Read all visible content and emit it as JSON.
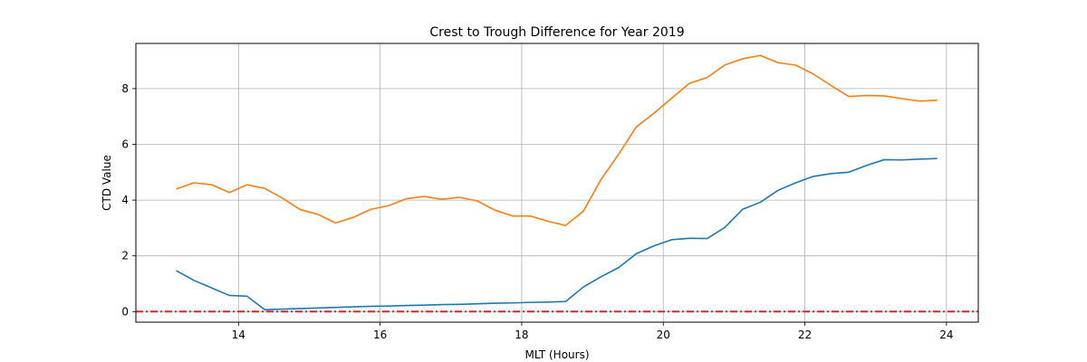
{
  "chart_data": {
    "type": "line",
    "title": "Crest to Trough Difference for Year 2019",
    "xlabel": "MLT (Hours)",
    "ylabel": "CTD Value",
    "xlim": [
      12.55,
      24.45
    ],
    "ylim": [
      -0.38,
      9.62
    ],
    "xticks": [
      14,
      16,
      18,
      20,
      22,
      24
    ],
    "yticks": [
      0,
      2,
      4,
      6,
      8
    ],
    "grid": true,
    "reference_line": {
      "y": 0,
      "style": "dash-dot",
      "color": "#d62728"
    },
    "series": [
      {
        "color": "#1f77b4",
        "x": [
          13.12,
          13.37,
          13.62,
          13.87,
          14.12,
          14.37,
          14.62,
          14.87,
          15.12,
          15.37,
          15.62,
          15.87,
          16.12,
          16.37,
          16.62,
          16.87,
          17.12,
          17.37,
          17.62,
          17.87,
          18.12,
          18.37,
          18.62,
          18.87,
          19.12,
          19.37,
          19.62,
          19.87,
          20.12,
          20.37,
          20.62,
          20.87,
          21.12,
          21.37,
          21.62,
          21.87,
          22.12,
          22.37,
          22.62,
          22.87,
          23.12,
          23.37,
          23.62,
          23.87
        ],
        "y": [
          1.47,
          1.12,
          0.85,
          0.58,
          0.55,
          0.07,
          0.09,
          0.11,
          0.13,
          0.15,
          0.17,
          0.19,
          0.2,
          0.22,
          0.23,
          0.25,
          0.26,
          0.28,
          0.3,
          0.31,
          0.33,
          0.34,
          0.36,
          0.88,
          1.25,
          1.58,
          2.08,
          2.36,
          2.58,
          2.63,
          2.62,
          3.02,
          3.67,
          3.92,
          4.35,
          4.62,
          4.85,
          4.95,
          5.0,
          5.24,
          5.45,
          5.44,
          5.47,
          5.49
        ]
      },
      {
        "color": "#ff7f0e",
        "x": [
          13.12,
          13.37,
          13.62,
          13.87,
          14.12,
          14.37,
          14.62,
          14.87,
          15.12,
          15.37,
          15.62,
          15.87,
          16.12,
          16.37,
          16.62,
          16.87,
          17.12,
          17.37,
          17.62,
          17.87,
          18.12,
          18.37,
          18.62,
          18.87,
          19.12,
          19.37,
          19.62,
          19.87,
          20.12,
          20.37,
          20.62,
          20.87,
          21.12,
          21.37,
          21.62,
          21.87,
          22.12,
          22.37,
          22.62,
          22.87,
          23.12,
          23.37,
          23.62,
          23.87
        ],
        "y": [
          4.4,
          4.62,
          4.55,
          4.27,
          4.55,
          4.42,
          4.07,
          3.66,
          3.49,
          3.18,
          3.38,
          3.67,
          3.8,
          4.05,
          4.13,
          4.03,
          4.1,
          3.97,
          3.64,
          3.43,
          3.43,
          3.24,
          3.09,
          3.6,
          4.74,
          5.65,
          6.63,
          7.12,
          7.66,
          8.19,
          8.4,
          8.85,
          9.07,
          9.19,
          8.93,
          8.84,
          8.52,
          8.11,
          7.72,
          7.75,
          7.74,
          7.64,
          7.55,
          7.58
        ]
      }
    ]
  }
}
